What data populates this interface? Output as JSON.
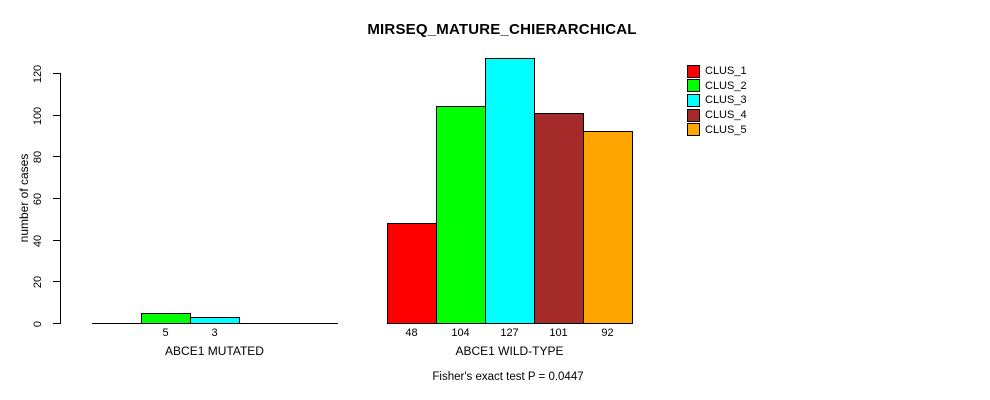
{
  "chart_data": {
    "type": "bar",
    "title": "MIRSEQ_MATURE_CHIERARCHICAL",
    "ylabel": "number of cases",
    "xlabel": "",
    "annotation": "Fisher's exact test P = 0.0447",
    "ylim": [
      0,
      120
    ],
    "yticks": [
      0,
      20,
      40,
      60,
      80,
      100,
      120
    ],
    "grid": false,
    "legend_position": "top-right",
    "bar_value_labels_shown": true,
    "zero_height_bars_drawn_as_baseline": true,
    "categories": [
      "ABCE1 MUTATED",
      "ABCE1 WILD-TYPE"
    ],
    "series": [
      {
        "name": "CLUS_1",
        "color": "#ff0000",
        "values": [
          0,
          48
        ]
      },
      {
        "name": "CLUS_2",
        "color": "#00ff00",
        "values": [
          5,
          104
        ]
      },
      {
        "name": "CLUS_3",
        "color": "#00ffff",
        "values": [
          3,
          127
        ]
      },
      {
        "name": "CLUS_4",
        "color": "#a52a2a",
        "values": [
          0,
          101
        ]
      },
      {
        "name": "CLUS_5",
        "color": "#ffa500",
        "values": [
          0,
          92
        ]
      }
    ]
  },
  "colors": {
    "background": "#ffffff",
    "axis": "#000000",
    "text": "#000000"
  }
}
